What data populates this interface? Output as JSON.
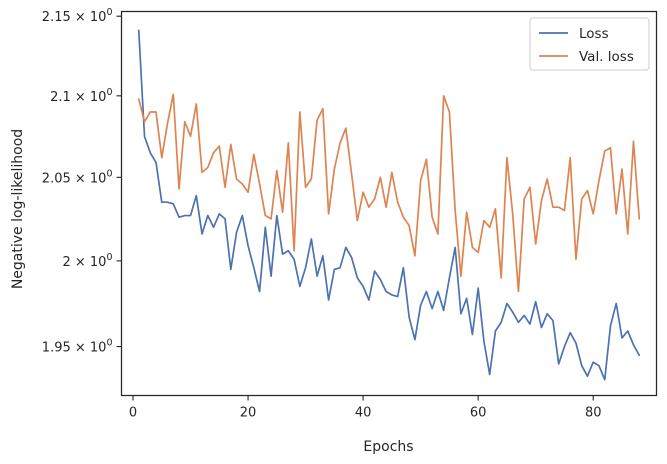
{
  "chart_data": {
    "type": "line",
    "title": "",
    "xlabel": "Epochs",
    "ylabel": "Negative log-likelihood",
    "xlim": [
      -2,
      91
    ],
    "ylim": [
      1.922,
      2.153
    ],
    "y_scale": "log",
    "grid": false,
    "legend_position": "top-right",
    "x_ticks": [
      0,
      20,
      40,
      60,
      80
    ],
    "x_tick_labels": [
      "0",
      "20",
      "40",
      "60",
      "80"
    ],
    "y_ticks": [
      1.95,
      2.0,
      2.05,
      2.1,
      2.15
    ],
    "y_tick_labels": [
      {
        "mantissa": "1.95",
        "times": "×",
        "base": "10",
        "exp": "0"
      },
      {
        "mantissa": "2",
        "times": "×",
        "base": "10",
        "exp": "0"
      },
      {
        "mantissa": "2.05",
        "times": "×",
        "base": "10",
        "exp": "0"
      },
      {
        "mantissa": "2.1",
        "times": "×",
        "base": "10",
        "exp": "0"
      },
      {
        "mantissa": "2.15",
        "times": "×",
        "base": "10",
        "exp": "0"
      }
    ],
    "series": [
      {
        "name": "Loss",
        "color": "#4c72b0",
        "x": [
          1,
          2,
          3,
          4,
          5,
          6,
          7,
          8,
          9,
          10,
          11,
          12,
          13,
          14,
          15,
          16,
          17,
          18,
          19,
          20,
          21,
          22,
          23,
          24,
          25,
          26,
          27,
          28,
          29,
          30,
          31,
          32,
          33,
          34,
          35,
          36,
          37,
          38,
          39,
          40,
          41,
          42,
          43,
          44,
          45,
          46,
          47,
          48,
          49,
          50,
          51,
          52,
          53,
          54,
          55,
          56,
          57,
          58,
          59,
          60,
          61,
          62,
          63,
          64,
          65,
          66,
          67,
          68,
          69,
          70,
          71,
          72,
          73,
          74,
          75,
          76,
          77,
          78,
          79,
          80,
          81,
          82,
          83,
          84,
          85,
          86,
          87,
          88
        ],
        "values": [
          2.141,
          2.075,
          2.065,
          2.059,
          2.035,
          2.035,
          2.034,
          2.026,
          2.027,
          2.027,
          2.039,
          2.016,
          2.027,
          2.02,
          2.028,
          2.025,
          1.995,
          2.017,
          2.027,
          2.009,
          1.996,
          1.982,
          2.02,
          1.991,
          2.027,
          2.004,
          2.006,
          2.001,
          1.985,
          1.996,
          2.013,
          1.991,
          2.003,
          1.977,
          1.995,
          1.996,
          2.008,
          2.002,
          1.99,
          1.985,
          1.977,
          1.994,
          1.989,
          1.982,
          1.98,
          1.979,
          1.996,
          1.967,
          1.954,
          1.974,
          1.982,
          1.972,
          1.982,
          1.971,
          1.99,
          2.008,
          1.969,
          1.978,
          1.957,
          1.984,
          1.953,
          1.934,
          1.959,
          1.964,
          1.975,
          1.97,
          1.964,
          1.968,
          1.963,
          1.976,
          1.961,
          1.969,
          1.965,
          1.94,
          1.95,
          1.958,
          1.952,
          1.939,
          1.933,
          1.941,
          1.939,
          1.931,
          1.962,
          1.975,
          1.955,
          1.959,
          1.951,
          1.945
        ]
      },
      {
        "name": "Val. loss",
        "color": "#dd8452",
        "x": [
          1,
          2,
          3,
          4,
          5,
          6,
          7,
          8,
          9,
          10,
          11,
          12,
          13,
          14,
          15,
          16,
          17,
          18,
          19,
          20,
          21,
          22,
          23,
          24,
          25,
          26,
          27,
          28,
          29,
          30,
          31,
          32,
          33,
          34,
          35,
          36,
          37,
          38,
          39,
          40,
          41,
          42,
          43,
          44,
          45,
          46,
          47,
          48,
          49,
          50,
          51,
          52,
          53,
          54,
          55,
          56,
          57,
          58,
          59,
          60,
          61,
          62,
          63,
          64,
          65,
          66,
          67,
          68,
          69,
          70,
          71,
          72,
          73,
          74,
          75,
          76,
          77,
          78,
          79,
          80,
          81,
          82,
          83,
          84,
          85,
          86,
          87,
          88
        ],
        "values": [
          2.098,
          2.084,
          2.09,
          2.09,
          2.062,
          2.083,
          2.101,
          2.043,
          2.084,
          2.075,
          2.095,
          2.053,
          2.056,
          2.065,
          2.069,
          2.044,
          2.07,
          2.049,
          2.046,
          2.041,
          2.064,
          2.046,
          2.027,
          2.025,
          2.054,
          2.029,
          2.071,
          2.006,
          2.09,
          2.044,
          2.049,
          2.085,
          2.092,
          2.028,
          2.055,
          2.071,
          2.08,
          2.052,
          2.024,
          2.041,
          2.032,
          2.037,
          2.05,
          2.032,
          2.053,
          2.035,
          2.026,
          2.021,
          2.003,
          2.048,
          2.061,
          2.026,
          2.016,
          2.1,
          2.09,
          2.03,
          1.991,
          2.029,
          2.008,
          2.005,
          2.024,
          2.02,
          2.031,
          1.99,
          2.062,
          2.028,
          1.982,
          2.037,
          2.044,
          2.01,
          2.036,
          2.049,
          2.032,
          2.032,
          2.03,
          2.062,
          2.001,
          2.037,
          2.042,
          2.028,
          2.048,
          2.066,
          2.068,
          2.028,
          2.055,
          2.016,
          2.072,
          2.025
        ]
      }
    ]
  }
}
